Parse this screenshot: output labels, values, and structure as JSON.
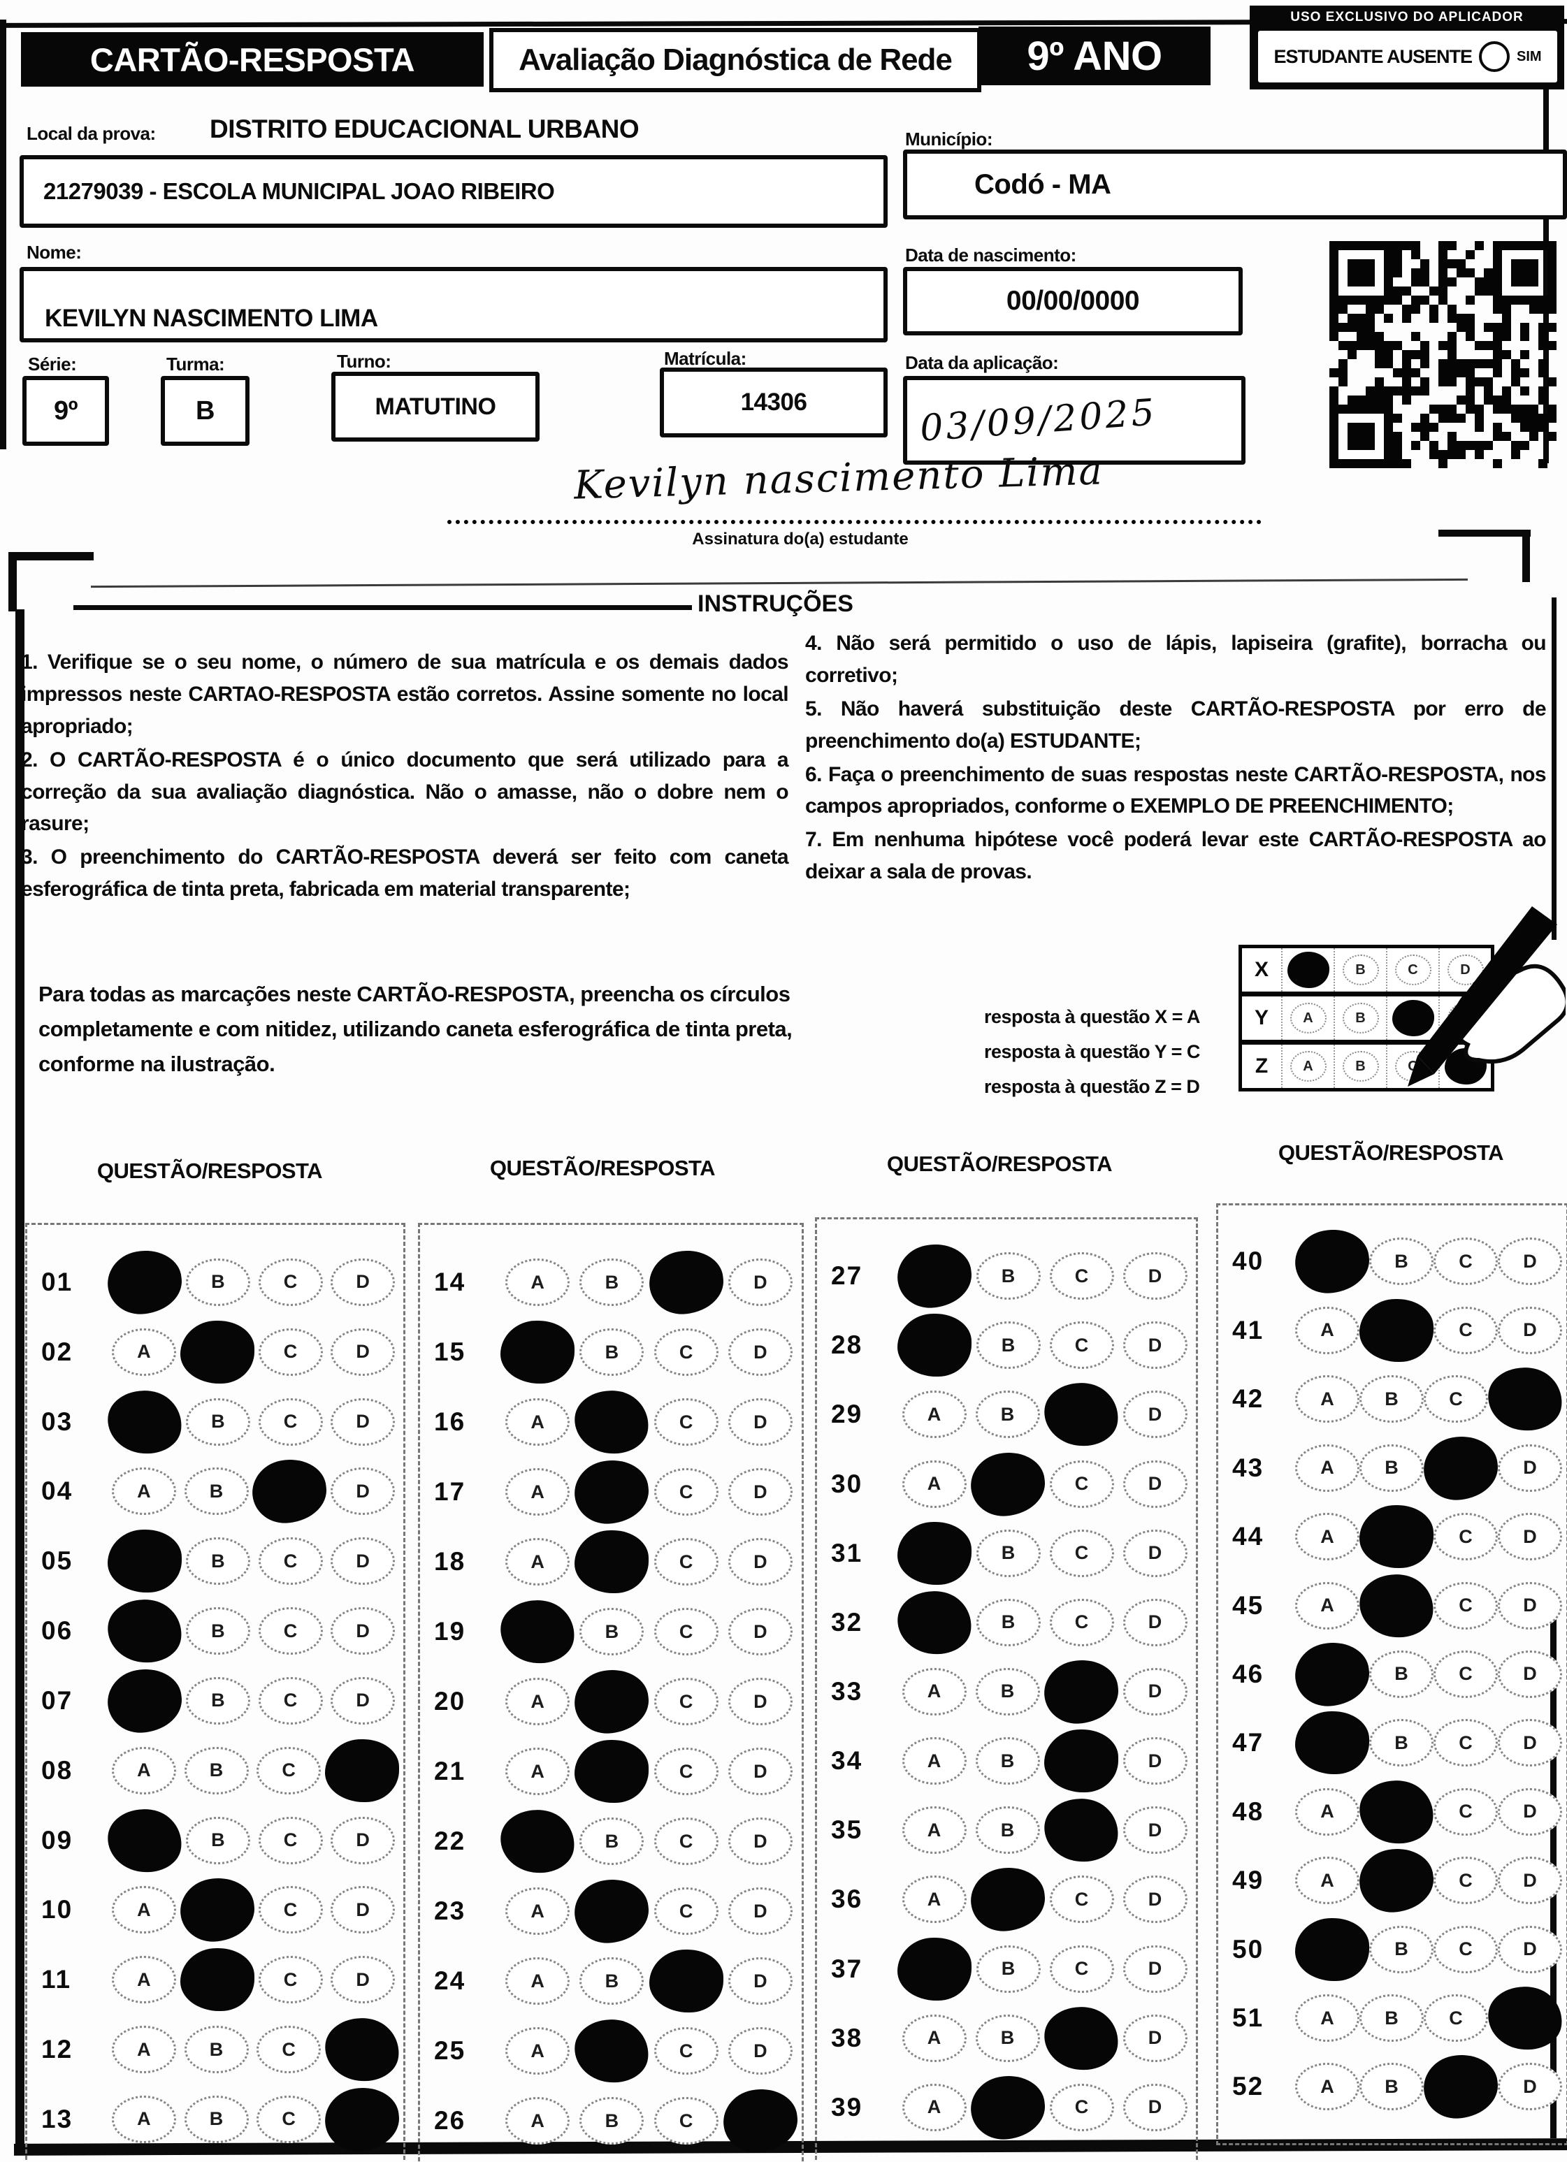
{
  "header": {
    "title": "CARTÃO-RESPOSTA",
    "subtitle": "Avaliação Diagnóstica de Rede",
    "grade": "9º ANO",
    "aplicador_label": "USO EXCLUSIVO DO APLICADOR",
    "ausente_label": "ESTUDANTE AUSENTE",
    "sim_label": "SIM"
  },
  "form": {
    "local_label": "Local da prova:",
    "local_value": "DISTRITO EDUCACIONAL URBANO",
    "school_value": "21279039 - ESCOLA MUNICIPAL JOAO RIBEIRO",
    "municipio_label": "Município:",
    "municipio_value": "Codó - MA",
    "nome_label": "Nome:",
    "nome_value": "KEVILYN NASCIMENTO LIMA",
    "nascimento_label": "Data de nascimento:",
    "nascimento_value": "00/00/0000",
    "serie_label": "Série:",
    "serie_value": "9º",
    "turma_label": "Turma:",
    "turma_value": "B",
    "turno_label": "Turno:",
    "turno_value": "MATUTINO",
    "matricula_label": "Matrícula:",
    "matricula_value": "14306",
    "aplicacao_label": "Data da aplicação:",
    "aplicacao_value": "03/09/2025",
    "signature_value": "Kevilyn nascimento Lima",
    "signature_label": "Assinatura do(a) estudante"
  },
  "instructions": {
    "title": "INSTRUÇÕES",
    "left": [
      "1. Verifique se o seu nome, o número de sua matrícula e os demais dados impressos neste CARTAO-RESPOSTA estão corretos. Assine somente no local apropriado;",
      "2. O CARTÃO-RESPOSTA é o único documento que será utilizado para a correção da sua avaliação diagnóstica. Não o amasse, não o dobre nem o rasure;",
      "3. O preenchimento do CARTÃO-RESPOSTA deverá ser feito com caneta esferográfica de tinta preta, fabricada em material transparente;"
    ],
    "right": [
      "4. Não será permitido o uso de lápis, lapiseira (grafite), borracha ou corretivo;",
      "5. Não haverá substituição deste CARTÃO-RESPOSTA por erro de preenchimento do(a) ESTUDANTE;",
      "6. Faça o preenchimento de suas respostas neste CARTÃO-RESPOSTA, nos campos apropriados, conforme o EXEMPLO DE PREENCHIMENTO;",
      "7. Em nenhuma hipótese você poderá levar este CARTÃO-RESPOSTA ao deixar a sala de provas."
    ]
  },
  "example": {
    "text": "Para todas as marcações neste CARTÃO-RESPOSTA, preencha os círculos completamente e com nitidez, utilizando caneta esferográfica de tinta preta, conforme na ilustração.",
    "legend": [
      "resposta à questão X = A",
      "resposta à questão Y = C",
      "resposta à questão Z = D"
    ],
    "grid_rows": [
      {
        "label": "X",
        "answer": "A"
      },
      {
        "label": "Y",
        "answer": "C"
      },
      {
        "label": "Z",
        "answer": "D"
      }
    ]
  },
  "answers": {
    "header": "QUESTÃO/RESPOSTA",
    "options": [
      "A",
      "B",
      "C",
      "D"
    ],
    "columns": [
      [
        {
          "q": "01",
          "a": "A"
        },
        {
          "q": "02",
          "a": "B"
        },
        {
          "q": "03",
          "a": "A"
        },
        {
          "q": "04",
          "a": "C"
        },
        {
          "q": "05",
          "a": "A"
        },
        {
          "q": "06",
          "a": "A"
        },
        {
          "q": "07",
          "a": "A"
        },
        {
          "q": "08",
          "a": "D"
        },
        {
          "q": "09",
          "a": "A"
        },
        {
          "q": "10",
          "a": "B"
        },
        {
          "q": "11",
          "a": "B"
        },
        {
          "q": "12",
          "a": "D"
        },
        {
          "q": "13",
          "a": "D"
        }
      ],
      [
        {
          "q": "14",
          "a": "C"
        },
        {
          "q": "15",
          "a": "A"
        },
        {
          "q": "16",
          "a": "B"
        },
        {
          "q": "17",
          "a": "B"
        },
        {
          "q": "18",
          "a": "B"
        },
        {
          "q": "19",
          "a": "A"
        },
        {
          "q": "20",
          "a": "B"
        },
        {
          "q": "21",
          "a": "B"
        },
        {
          "q": "22",
          "a": "A"
        },
        {
          "q": "23",
          "a": "B"
        },
        {
          "q": "24",
          "a": "C"
        },
        {
          "q": "25",
          "a": "B"
        },
        {
          "q": "26",
          "a": "D"
        }
      ],
      [
        {
          "q": "27",
          "a": "A"
        },
        {
          "q": "28",
          "a": "A"
        },
        {
          "q": "29",
          "a": "C"
        },
        {
          "q": "30",
          "a": "B"
        },
        {
          "q": "31",
          "a": "A"
        },
        {
          "q": "32",
          "a": "A"
        },
        {
          "q": "33",
          "a": "C"
        },
        {
          "q": "34",
          "a": "C"
        },
        {
          "q": "35",
          "a": "C"
        },
        {
          "q": "36",
          "a": "B"
        },
        {
          "q": "37",
          "a": "A"
        },
        {
          "q": "38",
          "a": "C"
        },
        {
          "q": "39",
          "a": "B"
        }
      ],
      [
        {
          "q": "40",
          "a": "A"
        },
        {
          "q": "41",
          "a": "B"
        },
        {
          "q": "42",
          "a": "D"
        },
        {
          "q": "43",
          "a": "C"
        },
        {
          "q": "44",
          "a": "B"
        },
        {
          "q": "45",
          "a": "B"
        },
        {
          "q": "46",
          "a": "A"
        },
        {
          "q": "47",
          "a": "A"
        },
        {
          "q": "48",
          "a": "B"
        },
        {
          "q": "49",
          "a": "B"
        },
        {
          "q": "50",
          "a": "A"
        },
        {
          "q": "51",
          "a": "D"
        },
        {
          "q": "52",
          "a": "C"
        }
      ]
    ]
  },
  "colors": {
    "ink": "#070707",
    "paper": "#fdfdfd",
    "bubble_outline": "#858585"
  }
}
